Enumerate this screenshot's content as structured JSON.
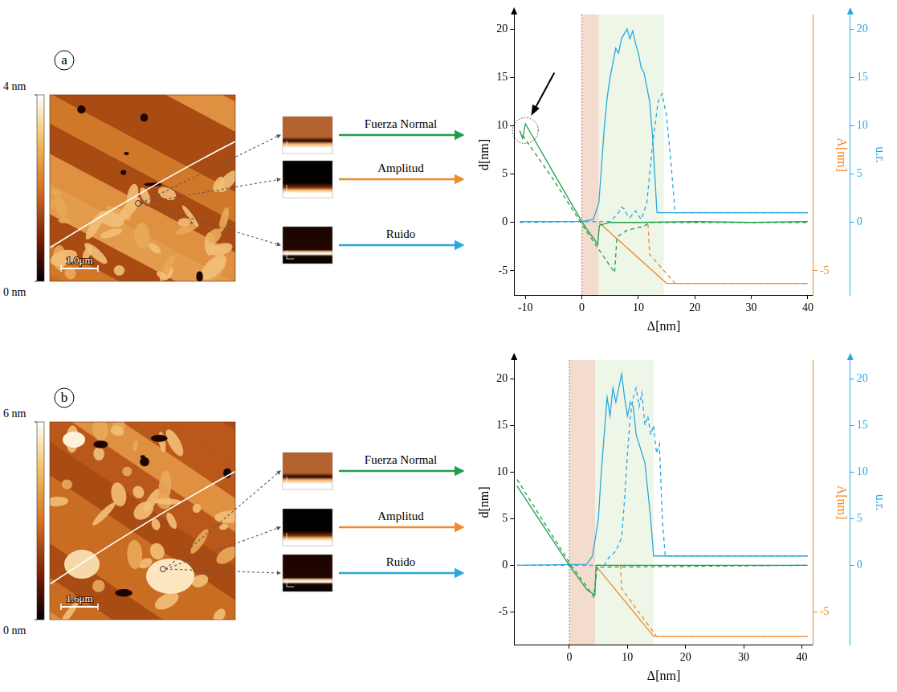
{
  "images": [
    {
      "panel": "a",
      "colorbar": {
        "range": [
          0,
          4
        ],
        "ticks": [
          {
            "value": 4,
            "label": "4 nm"
          },
          {
            "value": 0,
            "label": "0 nm"
          }
        ]
      },
      "scale_bar": "1.0μm",
      "channels": [
        {
          "name": "Fuerza Normal",
          "color": "#1f9e48"
        },
        {
          "name": "Amplitud",
          "color": "#f0892a"
        },
        {
          "name": "Ruido",
          "color": "#29a8e0"
        }
      ]
    },
    {
      "panel": "b",
      "colorbar": {
        "range": [
          0,
          6
        ],
        "ticks": [
          {
            "value": 6,
            "label": "6 nm"
          },
          {
            "value": 0,
            "label": "0 nm"
          }
        ]
      },
      "scale_bar": "1.6μm",
      "channels": [
        {
          "name": "Fuerza Normal",
          "color": "#1f9e48"
        },
        {
          "name": "Amplitud",
          "color": "#f0892a"
        },
        {
          "name": "Ruido",
          "color": "#29a8e0"
        }
      ]
    }
  ],
  "chart_data": [
    {
      "type": "line",
      "x_label": "Δ[nm]",
      "y_label": "d[nm]",
      "y2_label": "u.r.",
      "y3_label": "A[nm]",
      "xlim": [
        -12,
        41
      ],
      "xticks": [
        -10,
        0,
        10,
        20,
        30,
        40
      ],
      "ylim": [
        -7.5,
        21.5
      ],
      "yticks": [
        -5,
        0,
        5,
        10,
        15,
        20
      ],
      "y2lim": [
        -7.5,
        21.5
      ],
      "y2ticks": [
        0,
        5,
        10,
        15,
        20
      ],
      "y3lim": [
        -7.5,
        21.5
      ],
      "y3ticks": [
        -5
      ],
      "grid": false,
      "regions": [
        {
          "x": [
            0,
            3
          ],
          "color": "#f3dccd"
        },
        {
          "x": [
            3,
            14.5
          ],
          "color": "#eef6e7"
        }
      ],
      "circled_point": {
        "x": -10,
        "y": 9.5
      },
      "series": [
        {
          "color": "#1f9e48",
          "line_style": "solid",
          "axis": "y",
          "x": [
            -11,
            -10.5,
            -10,
            -5,
            0,
            1,
            2,
            2.8,
            3.1,
            5,
            10,
            20,
            30,
            40
          ],
          "values": [
            9.5,
            8.7,
            10.2,
            5.1,
            0.1,
            -0.8,
            -1.6,
            -2.3,
            -0.3,
            0,
            0,
            0.1,
            0,
            0.1
          ]
        },
        {
          "color": "#1f9e48",
          "line_style": "dashed",
          "axis": "y",
          "x": [
            -10.5,
            -5,
            0,
            3,
            5.8,
            6.2,
            8,
            11,
            12,
            20,
            40
          ],
          "values": [
            9,
            4.4,
            -0.2,
            -2.8,
            -5.2,
            -1.5,
            -0.8,
            -0.4,
            0,
            0,
            0
          ]
        },
        {
          "color": "#f0892a",
          "line_style": "solid",
          "axis": "y3",
          "x": [
            3,
            15,
            40
          ],
          "values": [
            0,
            -6.3,
            -6.3
          ]
        },
        {
          "color": "#f0892a",
          "line_style": "dashed",
          "axis": "y3",
          "x": [
            11.7,
            12,
            16.5,
            40
          ],
          "values": [
            -0.2,
            -3.3,
            -6.3,
            -6.3
          ]
        },
        {
          "color": "#29a8e0",
          "line_style": "solid",
          "axis": "y2",
          "x": [
            -11,
            0,
            2,
            3,
            3.5,
            4,
            4.5,
            5,
            5.5,
            6,
            6.5,
            7,
            7.5,
            8,
            8.5,
            9,
            9.5,
            10,
            10.5,
            11,
            11.5,
            12,
            12.5,
            13,
            13.3,
            14,
            20,
            30,
            40
          ],
          "values": [
            0.1,
            0.1,
            0.3,
            2,
            6,
            10,
            13,
            15,
            16.5,
            18,
            17.5,
            19,
            19.5,
            20,
            19,
            19.8,
            18.5,
            17.5,
            16,
            15.5,
            14,
            12.5,
            9,
            4,
            1,
            1,
            1,
            1,
            1
          ]
        },
        {
          "color": "#29a8e0",
          "line_style": "dashed",
          "axis": "y2",
          "x": [
            -11,
            5,
            6.5,
            7,
            7.5,
            8,
            8.5,
            9.5,
            10.5,
            11.5,
            12.5,
            13.5,
            14.2,
            15,
            15.8,
            16.5,
            20,
            40
          ],
          "values": [
            0,
            0.1,
            1,
            1.6,
            1.4,
            0.8,
            0.5,
            1.2,
            0.3,
            2,
            8,
            12.5,
            13.3,
            11,
            6,
            1,
            1,
            1
          ]
        }
      ]
    },
    {
      "type": "line",
      "x_label": "Δ[nm]",
      "y_label": "d[nm]",
      "y2_label": "u.r.",
      "y3_label": "A[nm]",
      "xlim": [
        -9.5,
        42
      ],
      "xticks": [
        0,
        10,
        20,
        30,
        40
      ],
      "ylim": [
        -8.5,
        22
      ],
      "yticks": [
        -5,
        0,
        5,
        10,
        15,
        20
      ],
      "y2lim": [
        -8.5,
        22
      ],
      "y2ticks": [
        0,
        5,
        10,
        15,
        20
      ],
      "y3lim": [
        -8.5,
        22
      ],
      "y3ticks": [
        -5
      ],
      "grid": false,
      "regions": [
        {
          "x": [
            0,
            4.5
          ],
          "color": "#f3dccd"
        },
        {
          "x": [
            4.5,
            14.5
          ],
          "color": "#eef6e7"
        }
      ],
      "series": [
        {
          "color": "#1f9e48",
          "line_style": "solid",
          "axis": "y",
          "x": [
            -9,
            0,
            3,
            4.4,
            4.6,
            10,
            41
          ],
          "values": [
            8.5,
            0,
            -2.6,
            -3.2,
            0,
            0,
            0
          ]
        },
        {
          "color": "#1f9e48",
          "line_style": "dashed",
          "axis": "y",
          "x": [
            -9,
            0,
            3,
            4.2,
            4.8,
            41
          ],
          "values": [
            9.2,
            0.3,
            -2.3,
            -3.4,
            -0.2,
            0
          ]
        },
        {
          "color": "#f0892a",
          "line_style": "solid",
          "axis": "y3",
          "x": [
            4.5,
            14.5,
            41
          ],
          "values": [
            0,
            -7.6,
            -7.6
          ]
        },
        {
          "color": "#f0892a",
          "line_style": "dashed",
          "axis": "y3",
          "x": [
            8.8,
            9,
            15,
            41
          ],
          "values": [
            0,
            -2.5,
            -7.6,
            -7.6
          ]
        },
        {
          "color": "#29a8e0",
          "line_style": "solid",
          "axis": "y2",
          "x": [
            -9,
            3,
            4,
            5,
            5.5,
            6,
            6.5,
            7,
            7.5,
            8,
            8.5,
            9,
            9.5,
            10,
            10.5,
            11,
            11.5,
            12,
            12.5,
            13,
            13.5,
            14,
            14.5,
            20,
            41
          ],
          "values": [
            0,
            0.1,
            1,
            5,
            10,
            14,
            18,
            16,
            19,
            17.5,
            19,
            20.5,
            18,
            16,
            17.5,
            17,
            14,
            13,
            12,
            11,
            8,
            5,
            1,
            1,
            1
          ]
        },
        {
          "color": "#29a8e0",
          "line_style": "dashed",
          "axis": "y2",
          "x": [
            -9,
            6,
            7,
            8,
            9,
            9.5,
            10,
            10.5,
            11,
            11.5,
            12,
            12.5,
            13,
            13.5,
            14,
            14.5,
            15,
            15.5,
            16,
            16.5,
            20,
            41
          ],
          "values": [
            0,
            0,
            1,
            1.5,
            3,
            7,
            12,
            16,
            18,
            19,
            17,
            18.5,
            15,
            16,
            14,
            15,
            12,
            13,
            5,
            1,
            1,
            1
          ]
        }
      ]
    }
  ]
}
